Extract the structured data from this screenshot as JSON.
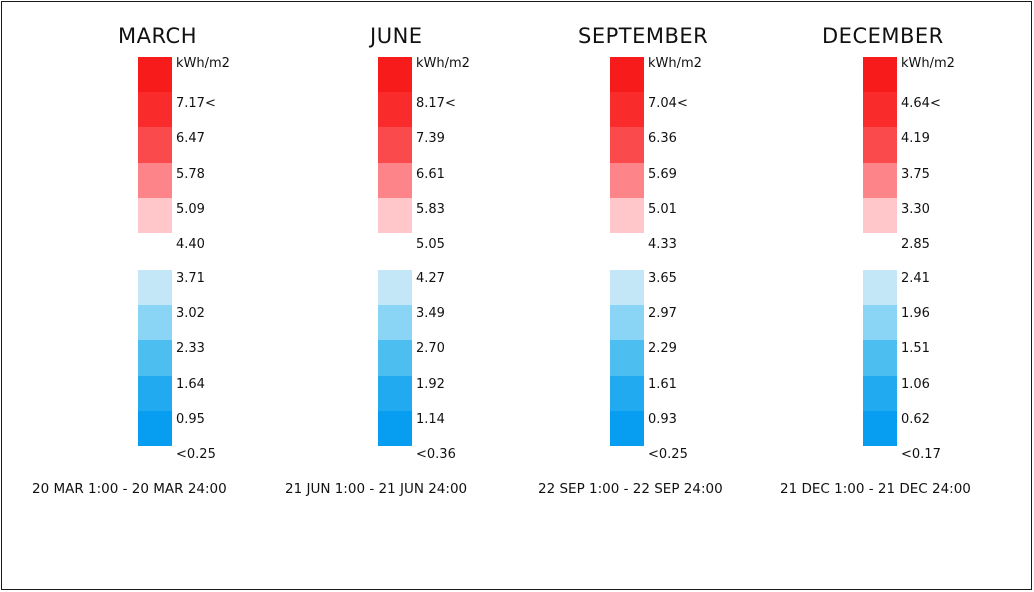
{
  "chart_data": {
    "type": "heatmap",
    "unit": "kWh/m2",
    "colors": {
      "high": [
        "#f81b1c",
        "#fa2b2b",
        "#fb4a4b",
        "#fd8488",
        "#ffc7c9"
      ],
      "low": [
        "#c3e7f7",
        "#8ad5f6",
        "#4cbff0",
        "#22aaf0",
        "#079ef2"
      ]
    },
    "legends": [
      {
        "title": "MARCH",
        "period": "20 MAR 1:00 - 20 MAR 24:00",
        "top_labels": [
          "kWh/m2",
          "7.17<",
          "6.47",
          "5.78",
          "5.09",
          "4.40"
        ],
        "bottom_labels": [
          "3.71",
          "3.02",
          "2.33",
          "1.64",
          "0.95",
          "<0.25"
        ]
      },
      {
        "title": "JUNE",
        "period": "21 JUN 1:00 - 21 JUN 24:00",
        "top_labels": [
          "kWh/m2",
          "8.17<",
          "7.39",
          "6.61",
          "5.83",
          "5.05"
        ],
        "bottom_labels": [
          "4.27",
          "3.49",
          "2.70",
          "1.92",
          "1.14",
          "<0.36"
        ]
      },
      {
        "title": "SEPTEMBER",
        "period": "22 SEP 1:00 - 22 SEP 24:00",
        "top_labels": [
          "kWh/m2",
          "7.04<",
          "6.36",
          "5.69",
          "5.01",
          "4.33"
        ],
        "bottom_labels": [
          "3.65",
          "2.97",
          "2.29",
          "1.61",
          "0.93",
          "<0.25"
        ]
      },
      {
        "title": "DECEMBER",
        "period": "21 DEC 1:00 - 21 DEC 24:00",
        "top_labels": [
          "kWh/m2",
          "4.64<",
          "4.19",
          "3.75",
          "3.30",
          "2.85"
        ],
        "bottom_labels": [
          "2.41",
          "1.96",
          "1.51",
          "1.06",
          "0.62",
          "<0.17"
        ]
      }
    ]
  }
}
